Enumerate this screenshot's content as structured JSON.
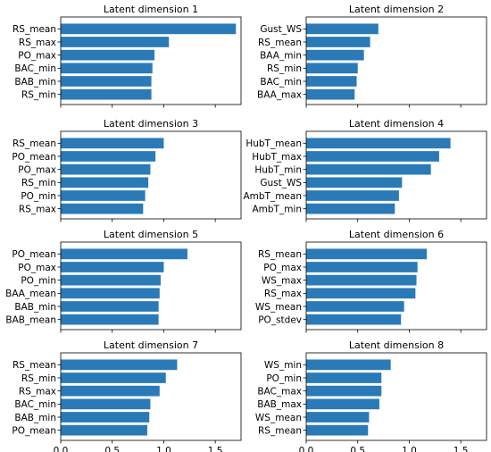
{
  "chart_data": [
    {
      "type": "bar",
      "orientation": "horizontal",
      "title": "Latent dimension 1",
      "categories": [
        "RS_mean",
        "RS_max",
        "PO_max",
        "BAC_min",
        "BAB_min",
        "RS_min"
      ],
      "values": [
        1.7,
        1.05,
        0.91,
        0.89,
        0.88,
        0.88
      ],
      "xlim": [
        0,
        1.75
      ],
      "xticks": [
        0.0,
        0.5,
        1.0,
        1.5
      ]
    },
    {
      "type": "bar",
      "orientation": "horizontal",
      "title": "Latent dimension 2",
      "categories": [
        "Gust_WS",
        "RS_mean",
        "BAA_min",
        "RS_min",
        "BAC_min",
        "BAA_max"
      ],
      "values": [
        0.7,
        0.62,
        0.56,
        0.5,
        0.49,
        0.47
      ],
      "xlim": [
        0,
        1.75
      ],
      "xticks": [
        0.0,
        0.5,
        1.0,
        1.5
      ]
    },
    {
      "type": "bar",
      "orientation": "horizontal",
      "title": "Latent dimension 3",
      "categories": [
        "RS_mean",
        "PO_mean",
        "PO_max",
        "RS_min",
        "PO_min",
        "RS_max"
      ],
      "values": [
        1.0,
        0.92,
        0.87,
        0.85,
        0.82,
        0.8
      ],
      "xlim": [
        0,
        1.75
      ],
      "xticks": [
        0.0,
        0.5,
        1.0,
        1.5
      ]
    },
    {
      "type": "bar",
      "orientation": "horizontal",
      "title": "Latent dimension 4",
      "categories": [
        "HubT_mean",
        "HubT_max",
        "HubT_min",
        "Gust_WS",
        "AmbT_mean",
        "AmbT_min"
      ],
      "values": [
        1.4,
        1.29,
        1.21,
        0.93,
        0.9,
        0.86
      ],
      "xlim": [
        0,
        1.75
      ],
      "xticks": [
        0.0,
        0.5,
        1.0,
        1.5
      ]
    },
    {
      "type": "bar",
      "orientation": "horizontal",
      "title": "Latent dimension 5",
      "categories": [
        "PO_mean",
        "PO_max",
        "PO_min",
        "BAA_mean",
        "BAB_min",
        "BAB_mean"
      ],
      "values": [
        1.23,
        1.0,
        0.97,
        0.96,
        0.95,
        0.95
      ],
      "xlim": [
        0,
        1.75
      ],
      "xticks": [
        0.0,
        0.5,
        1.0,
        1.5
      ]
    },
    {
      "type": "bar",
      "orientation": "horizontal",
      "title": "Latent dimension 6",
      "categories": [
        "RS_mean",
        "PO_max",
        "WS_max",
        "RS_max",
        "WS_mean",
        "PO_stdev"
      ],
      "values": [
        1.17,
        1.08,
        1.07,
        1.06,
        0.95,
        0.92
      ],
      "xlim": [
        0,
        1.75
      ],
      "xticks": [
        0.0,
        0.5,
        1.0,
        1.5
      ]
    },
    {
      "type": "bar",
      "orientation": "horizontal",
      "title": "Latent dimension 7",
      "categories": [
        "RS_mean",
        "RS_min",
        "RS_max",
        "BAC_min",
        "BAB_min",
        "PO_mean"
      ],
      "values": [
        1.13,
        1.02,
        0.96,
        0.87,
        0.86,
        0.84
      ],
      "xlim": [
        0,
        1.75
      ],
      "xticks": [
        0.0,
        0.5,
        1.0,
        1.5
      ],
      "xtick_labels": [
        "0.0",
        "0.5",
        "1.0",
        "1.5"
      ]
    },
    {
      "type": "bar",
      "orientation": "horizontal",
      "title": "Latent dimension 8",
      "categories": [
        "WS_min",
        "PO_min",
        "BAC_max",
        "BAB_max",
        "WS_mean",
        "RS_mean"
      ],
      "values": [
        0.82,
        0.73,
        0.73,
        0.71,
        0.61,
        0.6
      ],
      "xlim": [
        0,
        1.75
      ],
      "xticks": [
        0.0,
        0.5,
        1.0,
        1.5
      ],
      "xtick_labels": [
        "0.0",
        "0.5",
        "1.0",
        "1.5"
      ]
    }
  ],
  "colors": {
    "bar": "#2a7ab8"
  }
}
